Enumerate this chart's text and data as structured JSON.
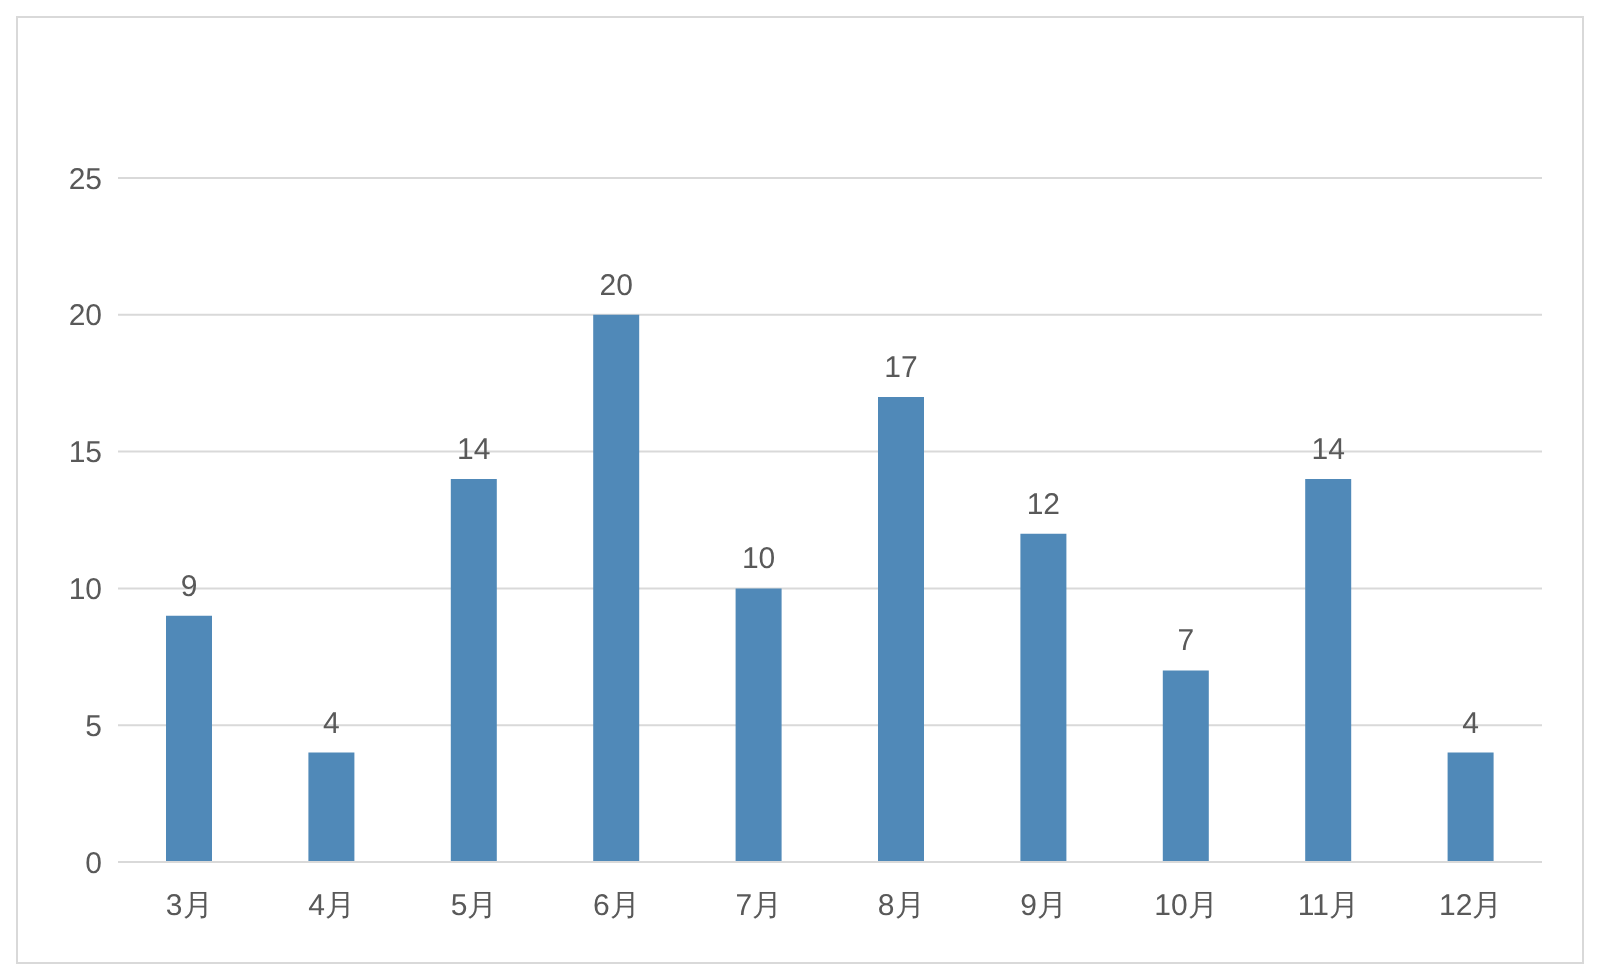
{
  "chart_data": {
    "type": "bar",
    "categories": [
      "3月",
      "4月",
      "5月",
      "6月",
      "7月",
      "8月",
      "9月",
      "10月",
      "11月",
      "12月"
    ],
    "values": [
      9,
      4,
      14,
      20,
      10,
      17,
      12,
      7,
      14,
      4
    ],
    "color": "#5089b8",
    "ylim": [
      0,
      25
    ],
    "yticks": [
      0,
      5,
      10,
      15,
      20,
      25
    ],
    "grid": "y",
    "data_labels": true,
    "legend": false
  }
}
